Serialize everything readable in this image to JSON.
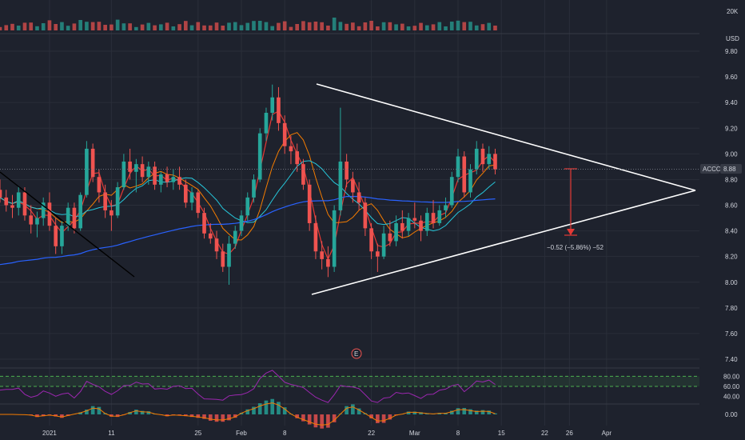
{
  "chart_data": {
    "type": "candlestick",
    "symbol": "ACCO",
    "currency": "USD",
    "last_price": "8.88",
    "price_axis": {
      "ticks": [
        "9.80",
        "9.60",
        "9.40",
        "9.20",
        "9.00",
        "8.80",
        "8.60",
        "8.40",
        "8.20",
        "8.00",
        "7.80",
        "7.60",
        "7.40"
      ],
      "range": [
        7.3,
        9.95
      ]
    },
    "volume_axis": {
      "ticks": [
        "20K"
      ]
    },
    "oscillator_axis": {
      "ticks": [
        "80.00",
        "60.00",
        "40.00"
      ],
      "range": [
        25,
        95
      ],
      "upper_band": 80,
      "lower_band": 60
    },
    "macd_axis": {
      "ticks": [
        "0.00"
      ]
    },
    "time_axis": {
      "labels": [
        "2021",
        "11",
        "25",
        "Feb",
        "8",
        "22",
        "Mar",
        "8",
        "15",
        "22",
        "26",
        "Apr"
      ],
      "label_days": [
        0,
        10,
        24,
        31,
        38,
        52,
        59,
        66,
        73,
        80,
        84,
        90
      ],
      "range_days": [
        -8,
        105
      ]
    },
    "series": [
      {
        "type": "ohlc",
        "name": "ACCO",
        "points": [
          [
            -8,
            8.72,
            8.8,
            8.62,
            8.66
          ],
          [
            -7,
            8.66,
            8.72,
            8.55,
            8.6
          ],
          [
            -6,
            8.6,
            8.68,
            8.5,
            8.58
          ],
          [
            -5,
            8.58,
            8.75,
            8.52,
            8.7
          ],
          [
            -4,
            8.7,
            8.74,
            8.48,
            8.52
          ],
          [
            -3,
            8.52,
            8.6,
            8.38,
            8.45
          ],
          [
            -2,
            8.45,
            8.55,
            8.35,
            8.5
          ],
          [
            -1,
            8.5,
            8.66,
            8.44,
            8.62
          ],
          [
            0,
            8.62,
            8.7,
            8.4,
            8.44
          ],
          [
            1,
            8.44,
            8.5,
            8.22,
            8.28
          ],
          [
            2,
            8.28,
            8.48,
            8.22,
            8.44
          ],
          [
            3,
            8.44,
            8.62,
            8.4,
            8.58
          ],
          [
            4,
            8.58,
            8.62,
            8.38,
            8.42
          ],
          [
            5,
            8.42,
            8.7,
            8.4,
            8.68
          ],
          [
            6,
            8.68,
            9.1,
            8.66,
            9.04
          ],
          [
            7,
            9.04,
            9.08,
            8.78,
            8.82
          ],
          [
            8,
            8.82,
            8.88,
            8.62,
            8.7
          ],
          [
            9,
            8.7,
            8.76,
            8.5,
            8.56
          ],
          [
            10,
            8.56,
            8.64,
            8.4,
            8.52
          ],
          [
            11,
            8.52,
            8.78,
            8.5,
            8.74
          ],
          [
            12,
            8.74,
            9.0,
            8.72,
            8.94
          ],
          [
            13,
            8.94,
            9.04,
            8.8,
            8.86
          ],
          [
            14,
            8.86,
            8.96,
            8.7,
            8.92
          ],
          [
            15,
            8.92,
            8.98,
            8.78,
            8.82
          ],
          [
            16,
            8.82,
            8.94,
            8.76,
            8.9
          ],
          [
            17,
            8.9,
            8.94,
            8.72,
            8.76
          ],
          [
            18,
            8.76,
            8.86,
            8.7,
            8.84
          ],
          [
            19,
            8.84,
            8.9,
            8.74,
            8.78
          ],
          [
            20,
            8.78,
            8.88,
            8.72,
            8.82
          ],
          [
            21,
            8.82,
            8.9,
            8.72,
            8.76
          ],
          [
            22,
            8.76,
            8.8,
            8.58,
            8.62
          ],
          [
            23,
            8.62,
            8.74,
            8.56,
            8.7
          ],
          [
            24,
            8.7,
            8.72,
            8.5,
            8.54
          ],
          [
            25,
            8.54,
            8.58,
            8.34,
            8.38
          ],
          [
            26,
            8.38,
            8.46,
            8.3,
            8.34
          ],
          [
            27,
            8.34,
            8.4,
            8.18,
            8.24
          ],
          [
            28,
            8.24,
            8.3,
            8.08,
            8.12
          ],
          [
            29,
            8.12,
            8.36,
            7.98,
            8.3
          ],
          [
            30,
            8.3,
            8.44,
            8.26,
            8.4
          ],
          [
            31,
            8.4,
            8.56,
            8.36,
            8.52
          ],
          [
            32,
            8.52,
            8.7,
            8.48,
            8.66
          ],
          [
            33,
            8.66,
            8.84,
            8.62,
            8.8
          ],
          [
            34,
            8.8,
            9.2,
            8.78,
            9.16
          ],
          [
            35,
            9.16,
            9.36,
            9.1,
            9.32
          ],
          [
            36,
            9.32,
            9.54,
            9.26,
            9.44
          ],
          [
            37,
            9.44,
            9.52,
            9.18,
            9.24
          ],
          [
            38,
            9.24,
            9.3,
            9.0,
            9.06
          ],
          [
            39,
            9.06,
            9.14,
            8.92,
            9.02
          ],
          [
            40,
            9.02,
            9.08,
            8.86,
            8.92
          ],
          [
            41,
            8.92,
            8.96,
            8.72,
            8.76
          ],
          [
            42,
            8.76,
            8.8,
            8.4,
            8.46
          ],
          [
            43,
            8.46,
            8.52,
            8.18,
            8.24
          ],
          [
            44,
            8.24,
            8.32,
            8.1,
            8.18
          ],
          [
            45,
            8.18,
            8.28,
            8.04,
            8.12
          ],
          [
            46,
            8.12,
            8.6,
            8.08,
            8.56
          ],
          [
            47,
            8.56,
            9.36,
            8.52,
            8.94
          ],
          [
            48,
            8.94,
            9.0,
            8.74,
            8.8
          ],
          [
            49,
            8.8,
            8.86,
            8.62,
            8.7
          ],
          [
            50,
            8.7,
            8.78,
            8.56,
            8.62
          ],
          [
            51,
            8.62,
            8.66,
            8.36,
            8.42
          ],
          [
            52,
            8.42,
            8.46,
            8.18,
            8.24
          ],
          [
            53,
            8.24,
            8.3,
            8.08,
            8.2
          ],
          [
            54,
            8.2,
            8.44,
            8.18,
            8.38
          ],
          [
            55,
            8.38,
            8.48,
            8.28,
            8.32
          ],
          [
            56,
            8.32,
            8.52,
            8.28,
            8.46
          ],
          [
            57,
            8.46,
            8.56,
            8.34,
            8.4
          ],
          [
            58,
            8.4,
            8.54,
            8.36,
            8.5
          ],
          [
            59,
            8.5,
            8.62,
            8.42,
            8.48
          ],
          [
            60,
            8.48,
            8.52,
            8.32,
            8.4
          ],
          [
            61,
            8.4,
            8.58,
            8.36,
            8.54
          ],
          [
            62,
            8.54,
            8.64,
            8.42,
            8.46
          ],
          [
            63,
            8.46,
            8.6,
            8.44,
            8.56
          ],
          [
            64,
            8.56,
            8.66,
            8.5,
            8.6
          ],
          [
            65,
            8.6,
            8.86,
            8.58,
            8.82
          ],
          [
            66,
            8.82,
            9.04,
            8.78,
            8.98
          ],
          [
            67,
            8.98,
            9.02,
            8.66,
            8.7
          ],
          [
            68,
            8.7,
            8.92,
            8.66,
            8.88
          ],
          [
            69,
            8.88,
            9.1,
            8.84,
            9.04
          ],
          [
            70,
            9.04,
            9.08,
            8.86,
            8.92
          ],
          [
            71,
            8.92,
            9.06,
            8.88,
            9.0
          ],
          [
            72,
            9.0,
            9.04,
            8.84,
            8.88
          ]
        ]
      }
    ],
    "annotations": {
      "price_change_text": "−0.52 (−5.86%) −52",
      "earnings_badge": "E"
    },
    "colors": {
      "background": "#1e222d",
      "up": "#26a69a",
      "down": "#ef5350",
      "ma_fast": "#e53935",
      "ma_mid": "#f57c00",
      "ma_slow": "#26c6da",
      "ma_long": "#2962ff",
      "triangle": "#ffffff",
      "trendline": "#000000",
      "measure": "#e53935",
      "oscillator": "#9c27b0",
      "band": "#4caf50"
    }
  }
}
